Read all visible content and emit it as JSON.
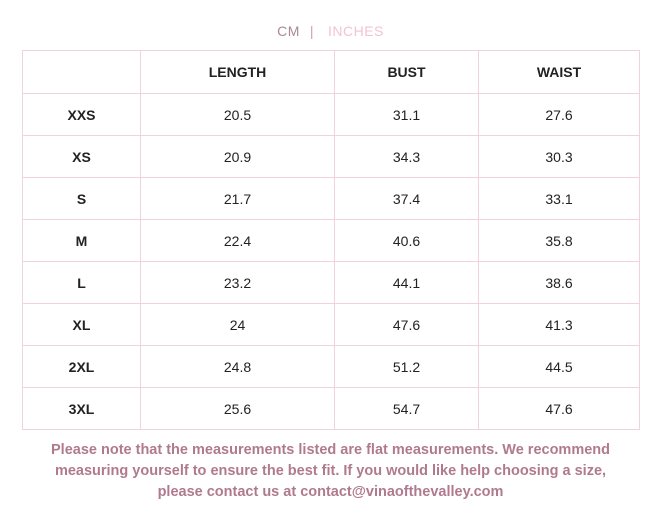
{
  "toggle": {
    "options": [
      "CM",
      "INCHES"
    ],
    "separator": "|"
  },
  "table": {
    "header": [
      "",
      "LENGTH",
      "BUST",
      "WAIST"
    ],
    "rows": [
      [
        "XXS",
        "20.5",
        "31.1",
        "27.6"
      ],
      [
        "XS",
        "20.9",
        "34.3",
        "30.3"
      ],
      [
        "S",
        "21.7",
        "37.4",
        "33.1"
      ],
      [
        "M",
        "22.4",
        "40.6",
        "35.8"
      ],
      [
        "L",
        "23.2",
        "44.1",
        "38.6"
      ],
      [
        "XL",
        "24",
        "47.6",
        "41.3"
      ],
      [
        "2XL",
        "24.8",
        "51.2",
        "44.5"
      ],
      [
        "3XL",
        "25.6",
        "54.7",
        "47.6"
      ]
    ]
  },
  "note": [
    "Please note that the measurements listed are flat measurements. We recommend",
    "measuring yourself to ensure the best fit. If you would like help choosing a size,",
    "please contact us at contact@vinaofthevalley.com"
  ]
}
